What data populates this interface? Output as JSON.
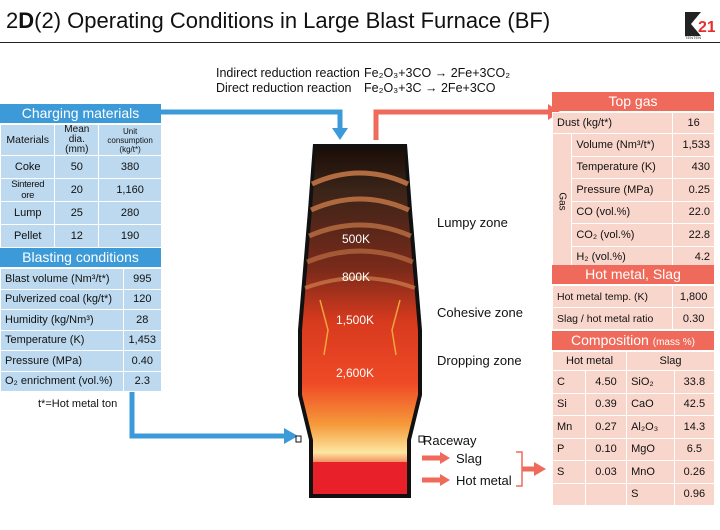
{
  "title": {
    "prefix": "2",
    "bold": "D",
    "paren": "(2)",
    "text": "Operating Conditions in Large Blast Furnace (BF)"
  },
  "logo": {
    "digits": "21",
    "small_text": "TENTEN"
  },
  "reactions": {
    "indirect_label": "Indirect reduction reaction",
    "indirect_formula": "Fe₂O₃+3CO → 2Fe+3CO₂",
    "direct_label": "Direct reduction reaction",
    "direct_formula": "Fe₂O₃+3C → 2Fe+3CO"
  },
  "charging": {
    "title": "Charging materials",
    "headers": [
      "Materials",
      "Mean dia.\n(mm)",
      "Unit consumption\n(kg/t*)"
    ],
    "rows": [
      [
        "Coke",
        "50",
        "380"
      ],
      [
        "Sintered ore",
        "20",
        "1,160"
      ],
      [
        "Lump",
        "25",
        "280"
      ],
      [
        "Pellet",
        "12",
        "190"
      ]
    ]
  },
  "blasting": {
    "title": "Blasting conditions",
    "rows": [
      [
        "Blast volume (Nm³/t*)",
        "995"
      ],
      [
        "Pulverized coal (kg/t*)",
        "120"
      ],
      [
        "Humidity (kg/Nm³)",
        "28"
      ],
      [
        "Temperature (K)",
        "1,453"
      ],
      [
        "Pressure (MPa)",
        "0.40"
      ],
      [
        "O₂ enrichment (vol.%)",
        "2.3"
      ]
    ],
    "note": "t*=Hot metal ton"
  },
  "furnace": {
    "temps": [
      "500K",
      "800K",
      "1,500K",
      "2,600K"
    ],
    "zones": [
      "Lumpy zone",
      "Cohesive zone",
      "Dropping zone"
    ],
    "raceway": "Raceway",
    "slag": "Slag",
    "hot_metal": "Hot metal"
  },
  "top_gas": {
    "title": "Top gas",
    "dust_label": "Dust (kg/t*)",
    "dust_value": "16",
    "gas_label": "Gas",
    "rows": [
      [
        "Volume (Nm³/t*)",
        "1,533"
      ],
      [
        "Temperature (K)",
        "430"
      ],
      [
        "Pressure (MPa)",
        "0.25"
      ],
      [
        "CO (vol.%)",
        "22.0"
      ],
      [
        "CO₂ (vol.%)",
        "22.8"
      ],
      [
        "H₂ (vol.%)",
        "4.2"
      ]
    ]
  },
  "hot_metal_slag": {
    "title": "Hot metal, Slag",
    "rows": [
      [
        "Hot metal temp. (K)",
        "1,800"
      ],
      [
        "Slag / hot metal ratio",
        "0.30"
      ]
    ]
  },
  "composition": {
    "title": "Composition",
    "unit": "(mass %)",
    "hm_header": "Hot metal",
    "slag_header": "Slag",
    "rows": [
      [
        "C",
        "4.50",
        "SiO₂",
        "33.8"
      ],
      [
        "Si",
        "0.39",
        "CaO",
        "42.5"
      ],
      [
        "Mn",
        "0.27",
        "Al₂O₃",
        "14.3"
      ],
      [
        "P",
        "0.10",
        "MgO",
        "6.5"
      ],
      [
        "S",
        "0.03",
        "MnO",
        "0.26"
      ],
      [
        "",
        "",
        "S",
        "0.96"
      ]
    ]
  },
  "colors": {
    "blue": "#3d9ad8",
    "light_blue": "#bcd9ef",
    "red": "#ef6a5b",
    "light_red": "#f9d6cc"
  }
}
